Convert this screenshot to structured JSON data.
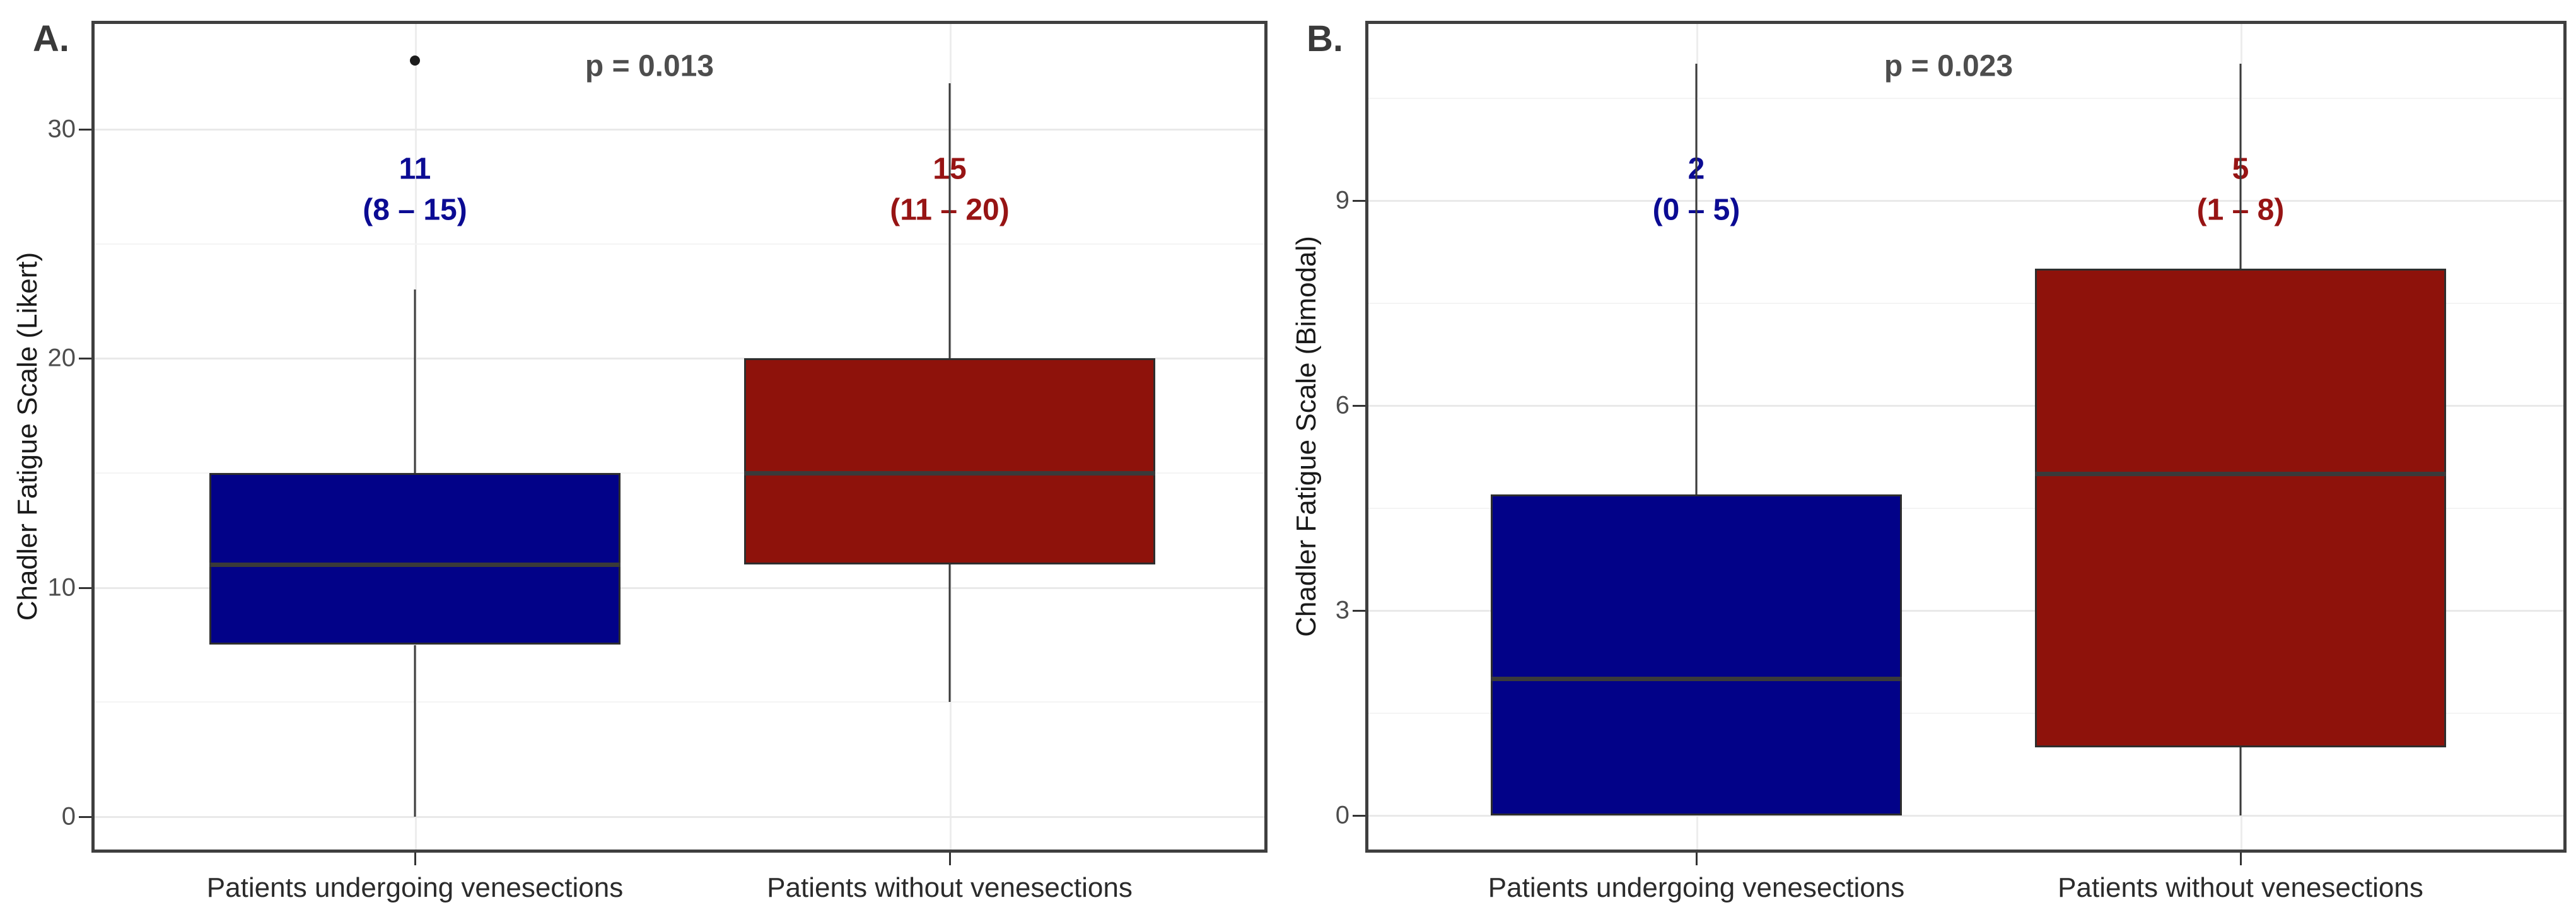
{
  "chart_data": {
    "type": "boxplot",
    "panels": [
      {
        "panel_label": "A.",
        "p_value": "p = 0.013",
        "y_axis_title": "Chadler Fatigue Scale (Likert)",
        "y_ticks": [
          0,
          10,
          20,
          30
        ],
        "y_minor_ticks": [
          5,
          15,
          25
        ],
        "ylim": [
          -1.5,
          34.5
        ],
        "grid": "on",
        "boxes": [
          {
            "category": "Patients undergoing venesections",
            "color": "#020288",
            "text_color": "#0b0b93",
            "annotation": {
              "value": "11",
              "range": "(8 – 15)"
            },
            "stats": {
              "whisker_low": 0,
              "q1": 7.5,
              "median": 11,
              "q3": 15,
              "whisker_high": 23,
              "outliers": [
                33
              ]
            }
          },
          {
            "category": "Patients without venesections",
            "color": "#8e120b",
            "text_color": "#971414",
            "annotation": {
              "value": "15",
              "range": "(11 – 20)"
            },
            "stats": {
              "whisker_low": 5,
              "q1": 11,
              "median": 15,
              "q3": 20,
              "whisker_high": 32,
              "outliers": []
            }
          }
        ]
      },
      {
        "panel_label": "B.",
        "p_value": "p = 0.023",
        "y_axis_title": "Chadler Fatigue Scale (Bimodal)",
        "y_ticks": [
          0,
          3,
          6,
          9
        ],
        "y_minor_ticks": [
          1.5,
          4.5,
          7.5,
          10.5
        ],
        "ylim": [
          -0.5,
          11.6
        ],
        "grid": "on",
        "boxes": [
          {
            "category": "Patients undergoing venesections",
            "color": "#020288",
            "text_color": "#0b0b93",
            "annotation": {
              "value": "2",
              "range": "(0 – 5)"
            },
            "stats": {
              "whisker_low": 0,
              "q1": 0,
              "median": 2,
              "q3": 4.7,
              "whisker_high": 11,
              "outliers": []
            }
          },
          {
            "category": "Patients without venesections",
            "color": "#8e120b",
            "text_color": "#971414",
            "annotation": {
              "value": "5",
              "range": "(1 – 8)"
            },
            "stats": {
              "whisker_low": 0,
              "q1": 1,
              "median": 5,
              "q3": 8,
              "whisker_high": 11,
              "outliers": []
            }
          }
        ]
      }
    ]
  }
}
